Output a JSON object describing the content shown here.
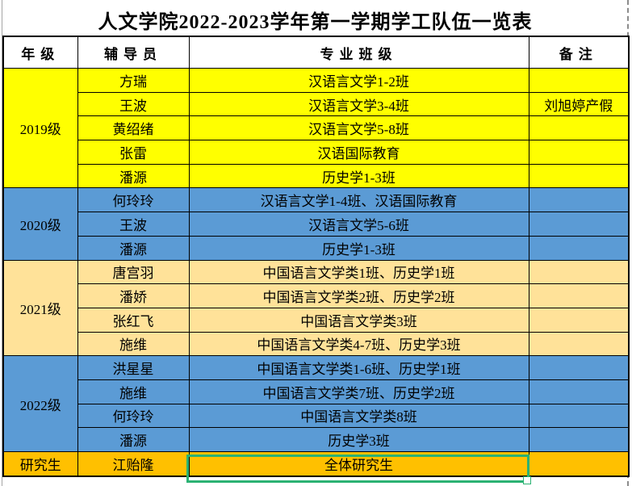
{
  "title": "人文学院2022-2023学年第一学期学工队伍一览表",
  "columns": {
    "grade": "年级",
    "counselor": "辅导员",
    "class": "专业班级",
    "note": "备注"
  },
  "colors": {
    "group_2019": "#FFFF00",
    "group_2020": "#5B9BD5",
    "group_2021": "#FFE299",
    "group_2022": "#5B9BD5",
    "group_graduate": "#FFC000",
    "selection_border": "#2BB273"
  },
  "sections": [
    {
      "grade": "2019级",
      "rows": [
        {
          "counselor": "方瑞",
          "class": "汉语言文学1-2班",
          "note": ""
        },
        {
          "counselor": "王波",
          "class": "汉语言文学3-4班",
          "note": "刘旭婷产假"
        },
        {
          "counselor": "黄绍绪",
          "class": "汉语言文学5-8班",
          "note": ""
        },
        {
          "counselor": "张雷",
          "class": "汉语国际教育",
          "note": ""
        },
        {
          "counselor": "潘源",
          "class": "历史学1-3班",
          "note": ""
        }
      ]
    },
    {
      "grade": "2020级",
      "rows": [
        {
          "counselor": "何玲玲",
          "class": "汉语言文学1-4班、汉语国际教育",
          "note": ""
        },
        {
          "counselor": "王波",
          "class": "汉语言文学5-6班",
          "note": ""
        },
        {
          "counselor": "潘源",
          "class": "历史学1-3班",
          "note": ""
        }
      ]
    },
    {
      "grade": "2021级",
      "rows": [
        {
          "counselor": "唐宫羽",
          "class": "中国语言文学类1班、历史学1班",
          "note": ""
        },
        {
          "counselor": "潘娇",
          "class": "中国语言文学类2班、历史学2班",
          "note": ""
        },
        {
          "counselor": "张红飞",
          "class": "中国语言文学类3班",
          "note": ""
        },
        {
          "counselor": "施维",
          "class": "中国语言文学类4-7班、历史学3班",
          "note": ""
        }
      ]
    },
    {
      "grade": "2022级",
      "rows": [
        {
          "counselor": "洪星星",
          "class": "中国语言文学类1-6班、历史学1班",
          "note": ""
        },
        {
          "counselor": "施维",
          "class": "中国语言文学类7班、历史学2班",
          "note": ""
        },
        {
          "counselor": "何玲玲",
          "class": "中国语言文学类8班",
          "note": ""
        },
        {
          "counselor": "潘源",
          "class": "历史学3班",
          "note": ""
        }
      ]
    },
    {
      "grade": "研究生",
      "rows": [
        {
          "counselor": "江贻隆",
          "class": "全体研究生",
          "note": ""
        }
      ]
    }
  ]
}
